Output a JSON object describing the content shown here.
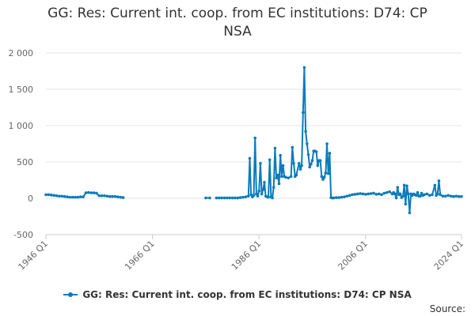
{
  "chart_data": {
    "type": "line",
    "title": "GG: Res: Current int. coop. from EC institutions: D74: CP NSA",
    "xlabel": "",
    "ylabel": "",
    "ylim": [
      -500,
      2000
    ],
    "yticks": [
      -500,
      0,
      500,
      1000,
      1500,
      2000
    ],
    "ytick_labels": [
      "-500",
      "0",
      "500",
      "1 000",
      "1 500",
      "2 000"
    ],
    "xlim": [
      1946.0,
      2024.0
    ],
    "xticks": [
      1946.0,
      1966.0,
      1986.0,
      2006.0,
      2024.0
    ],
    "xtick_labels": [
      "1946 Q1",
      "1966 Q1",
      "1986 Q1",
      "2006 Q1",
      "2024 Q1"
    ],
    "grid": "horizontal",
    "legend_position": "bottom",
    "series": [
      {
        "name": "GG: Res: Current int. coop. from EC institutions: D74: CP NSA",
        "color": "#0b7bbb",
        "segments": [
          [
            [
              1946.0,
              50
            ],
            [
              1946.5,
              50
            ],
            [
              1947.0,
              45
            ],
            [
              1947.5,
              40
            ],
            [
              1948.0,
              35
            ],
            [
              1948.5,
              30
            ],
            [
              1949.0,
              30
            ],
            [
              1949.5,
              25
            ],
            [
              1950.0,
              20
            ],
            [
              1950.5,
              15
            ],
            [
              1951.0,
              15
            ],
            [
              1951.5,
              15
            ],
            [
              1952.0,
              15
            ],
            [
              1952.5,
              20
            ],
            [
              1953.0,
              20
            ],
            [
              1953.5,
              75
            ],
            [
              1954.0,
              80
            ],
            [
              1954.5,
              75
            ],
            [
              1955.0,
              75
            ],
            [
              1955.5,
              70
            ],
            [
              1956.0,
              35
            ],
            [
              1956.5,
              35
            ],
            [
              1957.0,
              35
            ],
            [
              1957.5,
              30
            ],
            [
              1958.0,
              25
            ],
            [
              1958.5,
              25
            ],
            [
              1959.0,
              25
            ],
            [
              1959.5,
              20
            ],
            [
              1960.0,
              15
            ],
            [
              1960.5,
              10
            ]
          ],
          [
            [
              1976.0,
              5
            ],
            [
              1976.75,
              5
            ]
          ],
          [
            [
              1978.0,
              5
            ],
            [
              1978.5,
              5
            ],
            [
              1979.0,
              5
            ],
            [
              1979.5,
              5
            ],
            [
              1980.0,
              5
            ],
            [
              1980.5,
              5
            ],
            [
              1981.0,
              5
            ],
            [
              1981.5,
              5
            ],
            [
              1982.0,
              5
            ],
            [
              1982.5,
              10
            ],
            [
              1983.0,
              15
            ],
            [
              1983.5,
              20
            ],
            [
              1984.0,
              30
            ],
            [
              1984.25,
              550
            ],
            [
              1984.5,
              50
            ],
            [
              1984.75,
              20
            ],
            [
              1985.0,
              40
            ],
            [
              1985.25,
              830
            ],
            [
              1985.5,
              60
            ],
            [
              1985.75,
              30
            ],
            [
              1986.0,
              100
            ],
            [
              1986.25,
              480
            ],
            [
              1986.5,
              60
            ],
            [
              1986.75,
              120
            ],
            [
              1987.0,
              220
            ],
            [
              1987.25,
              30
            ],
            [
              1987.5,
              20
            ],
            [
              1987.75,
              15
            ],
            [
              1988.0,
              530
            ],
            [
              1988.25,
              20
            ],
            [
              1988.5,
              5
            ],
            [
              1988.75,
              150
            ],
            [
              1989.0,
              690
            ],
            [
              1989.25,
              280
            ],
            [
              1989.5,
              320
            ],
            [
              1989.75,
              200
            ],
            [
              1990.0,
              590
            ],
            [
              1990.25,
              300
            ],
            [
              1990.5,
              450
            ],
            [
              1990.75,
              300
            ],
            [
              1991.0,
              290
            ],
            [
              1991.5,
              280
            ],
            [
              1992.0,
              300
            ],
            [
              1992.25,
              700
            ],
            [
              1992.5,
              480
            ],
            [
              1992.75,
              300
            ],
            [
              1993.0,
              320
            ],
            [
              1993.5,
              480
            ],
            [
              1993.75,
              400
            ],
            [
              1994.0,
              450
            ],
            [
              1994.25,
              1180
            ],
            [
              1994.5,
              1800
            ],
            [
              1994.75,
              920
            ],
            [
              1995.0,
              750
            ],
            [
              1995.25,
              600
            ],
            [
              1995.5,
              430
            ],
            [
              1995.75,
              470
            ],
            [
              1996.0,
              520
            ],
            [
              1996.25,
              650
            ],
            [
              1996.5,
              650
            ],
            [
              1996.75,
              640
            ],
            [
              1997.0,
              450
            ],
            [
              1997.25,
              520
            ],
            [
              1997.5,
              520
            ],
            [
              1997.75,
              300
            ],
            [
              1998.0,
              260
            ],
            [
              1998.25,
              290
            ],
            [
              1998.5,
              350
            ],
            [
              1998.75,
              750
            ],
            [
              1999.0,
              340
            ],
            [
              1999.25,
              620
            ],
            [
              1999.5,
              10
            ],
            [
              1999.75,
              5
            ],
            [
              2000.0,
              5
            ],
            [
              2000.5,
              10
            ],
            [
              2001.0,
              10
            ],
            [
              2001.5,
              15
            ],
            [
              2002.0,
              20
            ],
            [
              2002.5,
              30
            ],
            [
              2003.0,
              40
            ],
            [
              2003.5,
              50
            ],
            [
              2004.0,
              55
            ],
            [
              2004.5,
              60
            ],
            [
              2005.0,
              65
            ],
            [
              2005.5,
              60
            ],
            [
              2006.0,
              55
            ],
            [
              2006.5,
              60
            ],
            [
              2007.0,
              65
            ],
            [
              2007.5,
              70
            ],
            [
              2008.0,
              55
            ],
            [
              2008.5,
              60
            ],
            [
              2009.0,
              50
            ],
            [
              2009.5,
              70
            ],
            [
              2010.0,
              80
            ],
            [
              2010.5,
              90
            ],
            [
              2011.0,
              60
            ],
            [
              2011.25,
              80
            ],
            [
              2011.5,
              60
            ],
            [
              2011.75,
              5
            ],
            [
              2012.0,
              150
            ],
            [
              2012.25,
              50
            ],
            [
              2012.5,
              60
            ],
            [
              2012.75,
              10
            ],
            [
              2013.0,
              30
            ],
            [
              2013.25,
              180
            ],
            [
              2013.5,
              -80
            ],
            [
              2013.75,
              170
            ],
            [
              2014.0,
              60
            ],
            [
              2014.25,
              -200
            ],
            [
              2014.5,
              60
            ],
            [
              2014.75,
              40
            ],
            [
              2015.0,
              60
            ],
            [
              2015.25,
              50
            ],
            [
              2015.5,
              40
            ],
            [
              2015.75,
              80
            ],
            [
              2016.0,
              30
            ],
            [
              2016.25,
              30
            ],
            [
              2016.5,
              70
            ],
            [
              2016.75,
              40
            ],
            [
              2017.0,
              50
            ],
            [
              2017.5,
              60
            ],
            [
              2018.0,
              40
            ],
            [
              2018.5,
              50
            ],
            [
              2019.0,
              180
            ],
            [
              2019.25,
              40
            ],
            [
              2019.5,
              60
            ],
            [
              2019.75,
              240
            ],
            [
              2020.0,
              50
            ],
            [
              2020.5,
              30
            ],
            [
              2021.0,
              30
            ],
            [
              2021.5,
              40
            ],
            [
              2022.0,
              30
            ],
            [
              2022.5,
              25
            ],
            [
              2023.0,
              30
            ],
            [
              2023.5,
              25
            ],
            [
              2024.0,
              25
            ]
          ]
        ]
      }
    ]
  },
  "legend": {
    "label": "GG: Res: Current int. coop. from EC institutions: D74: CP NSA"
  },
  "footer": {
    "source_label": "Source:"
  }
}
